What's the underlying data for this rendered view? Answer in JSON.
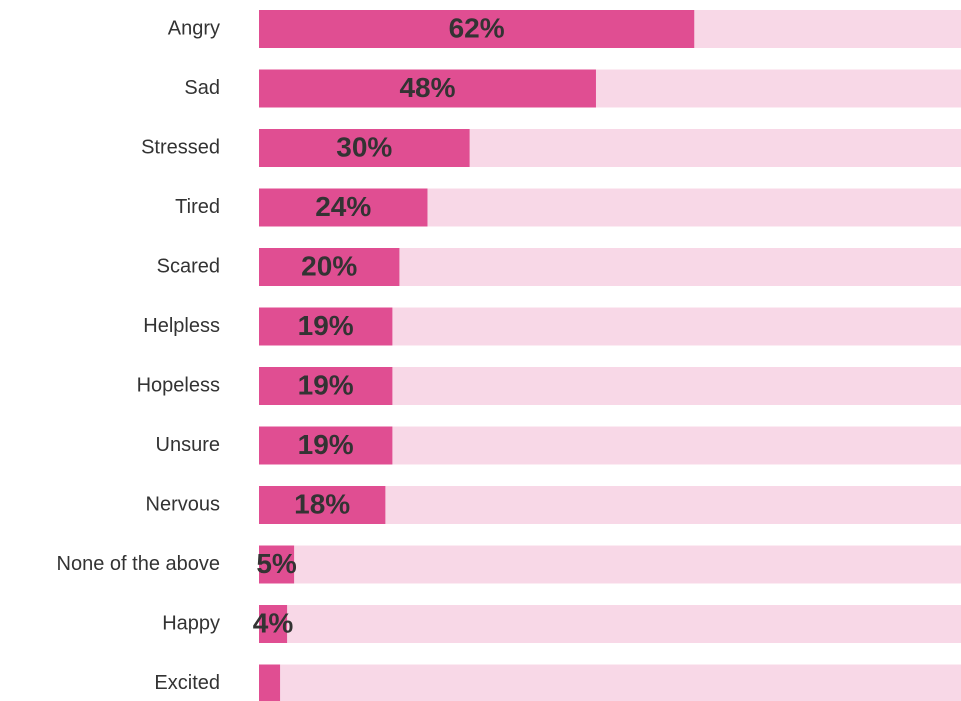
{
  "chart_data": {
    "type": "bar",
    "orientation": "horizontal",
    "categories": [
      "Angry",
      "Sad",
      "Stressed",
      "Tired",
      "Scared",
      "Helpless",
      "Hopeless",
      "Unsure",
      "Nervous",
      "None of the above",
      "Happy",
      "Excited"
    ],
    "values": [
      62,
      48,
      30,
      24,
      20,
      19,
      19,
      19,
      18,
      5,
      4,
      3
    ],
    "value_labels": [
      "62%",
      "48%",
      "30%",
      "24%",
      "20%",
      "19%",
      "19%",
      "19%",
      "18%",
      "5%",
      "4%",
      null
    ],
    "color": "#e04e92",
    "track_color": "#f8d8e7",
    "xlim": [
      0,
      100
    ]
  }
}
